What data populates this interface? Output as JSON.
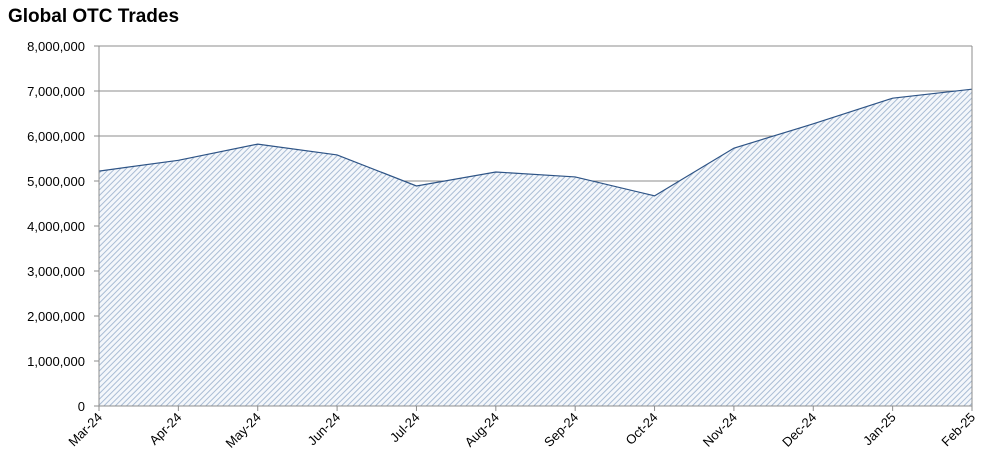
{
  "chart_data": {
    "type": "area",
    "title": "Global OTC Trades",
    "categories": [
      "Mar-24",
      "Apr-24",
      "May-24",
      "Jun-24",
      "Jul-24",
      "Aug-24",
      "Sep-24",
      "Oct-24",
      "Nov-24",
      "Dec-24",
      "Jan-25",
      "Feb-25"
    ],
    "values": [
      5220000,
      5460000,
      5820000,
      5580000,
      4890000,
      5200000,
      5090000,
      4670000,
      5730000,
      6270000,
      6840000,
      7040000
    ],
    "color": "#2e5486",
    "ylim": [
      0,
      8000000
    ],
    "yticks": [
      0,
      {
        "value": 1000000,
        "label": "1,000,000"
      },
      {
        "value": 2000000,
        "label": "2,000,000"
      },
      {
        "value": 3000000,
        "label": "3,000,000"
      },
      {
        "value": 4000000,
        "label": "4,000,000"
      },
      {
        "value": 5000000,
        "label": "5,000,000"
      },
      {
        "value": 6000000,
        "label": "6,000,000"
      },
      {
        "value": 7000000,
        "label": "7,000,000"
      },
      {
        "value": 8000000,
        "label": "8,000,000"
      }
    ],
    "grid": true
  }
}
